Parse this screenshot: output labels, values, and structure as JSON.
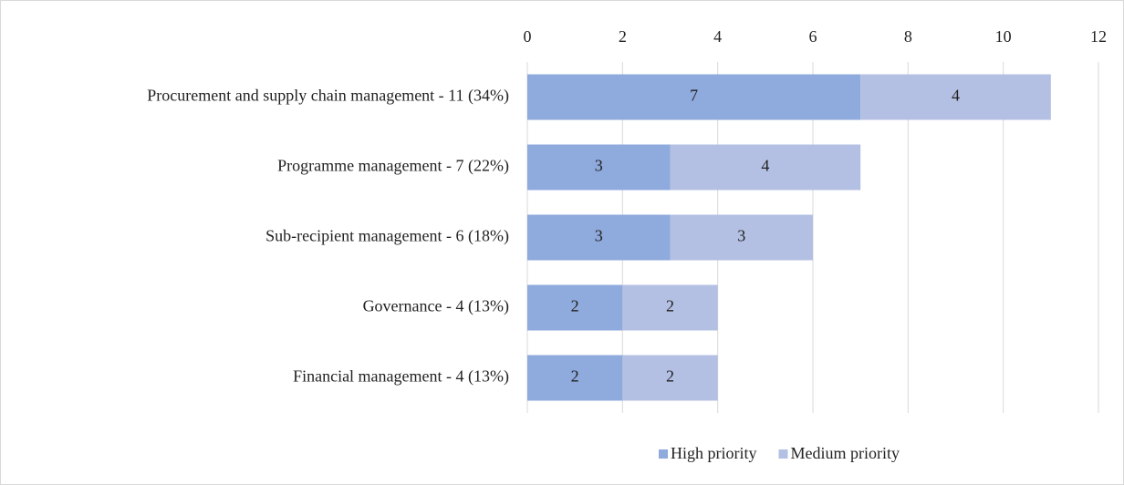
{
  "chart_data": {
    "type": "bar",
    "orientation": "horizontal",
    "stacked": true,
    "categories": [
      "Procurement and supply chain management - 11 (34%)",
      "Programme management - 7 (22%)",
      "Sub-recipient management - 6 (18%)",
      "Governance - 4 (13%)",
      "Financial management - 4 (13%)"
    ],
    "series": [
      {
        "name": "High priority",
        "color": "#8faadc",
        "values": [
          7,
          3,
          3,
          2,
          2
        ]
      },
      {
        "name": "Medium priority",
        "color": "#b4c0e3",
        "values": [
          4,
          4,
          3,
          2,
          2
        ]
      }
    ],
    "xlim": [
      0,
      12
    ],
    "xticks": [
      0,
      2,
      4,
      6,
      8,
      10,
      12
    ],
    "grid": true,
    "legend": "bottom"
  }
}
